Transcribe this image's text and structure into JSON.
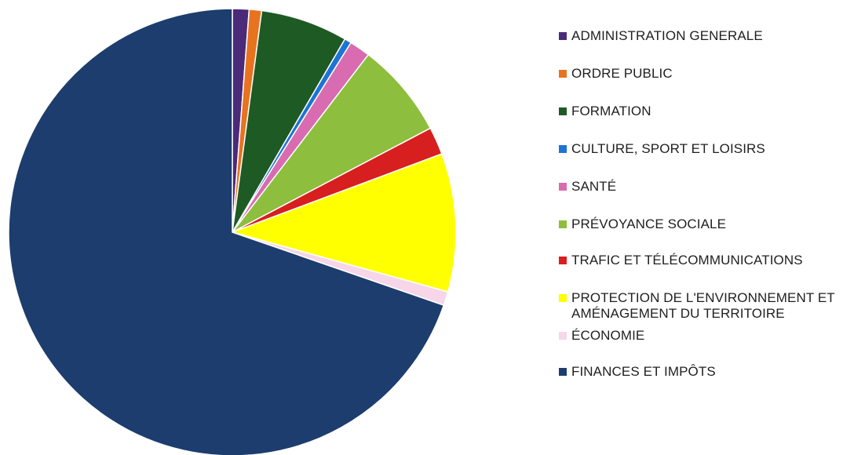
{
  "chart_data": {
    "type": "pie",
    "title": "",
    "slices": [
      {
        "label": "ADMINISTRATION GENERALE",
        "value": 1.2,
        "color": "#4b2a7a"
      },
      {
        "label": "ORDRE PUBLIC",
        "value": 0.9,
        "color": "#e8731f"
      },
      {
        "label": "FORMATION",
        "value": 6.3,
        "color": "#1e5a24"
      },
      {
        "label": "CULTURE, SPORT ET LOISIRS",
        "value": 0.5,
        "color": "#1e73d6"
      },
      {
        "label": "SANTÉ",
        "value": 1.5,
        "color": "#d96bb1"
      },
      {
        "label": "PRÉVOYANCE SOCIALE",
        "value": 6.9,
        "color": "#8dbe3d"
      },
      {
        "label": "TRAFIC ET TÉLÉCOMMUNICATIONS",
        "value": 2.0,
        "color": "#d71f1f"
      },
      {
        "label": "PROTECTION DE L'ENVIRONNEMENT ET\nAMÉNAGEMENT DU TERRITOIRE",
        "value": 10.0,
        "color": "#ffff00"
      },
      {
        "label": "ÉCONOMIE",
        "value": 1.0,
        "color": "#f6d6e8"
      },
      {
        "label": "FINANCES ET IMPÔTS",
        "value": 69.7,
        "color": "#1c3d6e"
      }
    ],
    "legend_position": "right"
  }
}
